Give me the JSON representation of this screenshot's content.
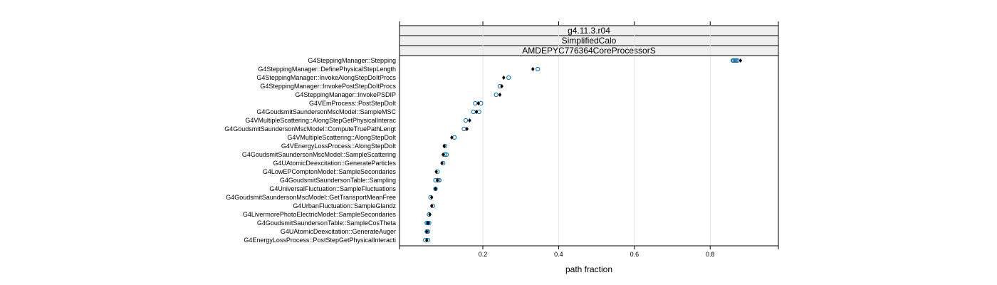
{
  "chart_data": {
    "type": "scatter",
    "strips": [
      "g4.11.3.r04",
      "SimplifiedCalo",
      "AMDEPYC776364CoreProcessorS"
    ],
    "xlabel": "path fraction",
    "xticks": [
      0.2,
      0.4,
      0.6,
      0.8
    ],
    "xlim": [
      -0.02,
      0.98
    ],
    "grid": true,
    "categories": [
      "G4SteppingManager::Stepping",
      "G4SteppingManager::DefinePhysicalStepLength",
      "G4SteppingManager::InvokeAlongStepDoItProcs",
      "G4SteppingManager::InvokePostStepDoItProcs",
      "G4SteppingManager::InvokePSDIP",
      "G4VEmProcess::PostStepDoIt",
      "G4GoudsmitSaundersonMscModel::SampleMSC",
      "G4VMultipleScattering::AlongStepGetPhysicalInterac",
      "G4GoudsmitSaundersonMscModel::ComputeTruePathLengt",
      "G4VMultipleScattering::AlongStepDoIt",
      "G4VEnergyLossProcess::AlongStepDoIt",
      "G4GoudsmitSaundersonMscModel::SampleScattering",
      "G4UAtomicDeexcitation::GenerateParticles",
      "G4LowEPComptonModel::SampleSecondaries",
      "G4GoudsmitSaundersonTable::Sampling",
      "G4UniversalFluctuation::SampleFluctuations",
      "G4GoudsmitSaundersonMscModel::GetTransportMeanFree",
      "G4UrbanFluctuation::SampleGlandz",
      "G4LivermorePhotoElectricModel::SampleSecondaries",
      "G4GoudsmitSaundersonTable::SampleCosTheta",
      "G4UAtomicDeexcitation::GenerateAuger",
      "G4EnergyLossProcess::PostStepGetPhysicalInteracti"
    ],
    "series": [
      {
        "name": "",
        "marker": "open-circle",
        "color": "#0072b2",
        "values": [
          [
            0.86,
            0.862,
            0.865,
            0.868,
            0.872
          ],
          [
            0.345
          ],
          [
            0.268
          ],
          [
            0.245
          ],
          [
            0.235
          ],
          [
            0.18,
            0.195
          ],
          [
            0.175,
            0.19
          ],
          [
            0.155
          ],
          [
            0.15
          ],
          [
            0.125
          ],
          [
            0.1
          ],
          [
            0.1,
            0.104
          ],
          [
            0.095
          ],
          [
            0.08
          ],
          [
            0.075,
            0.082,
            0.085
          ],
          [
            0.075
          ],
          [
            0.062
          ],
          [
            0.068
          ],
          [
            0.058
          ],
          [
            0.052,
            0.055,
            0.058
          ],
          [
            0.052,
            0.055
          ],
          [
            0.048,
            0.055
          ]
        ]
      },
      {
        "name": "",
        "marker": "filled-diamond",
        "color": "#000000",
        "values": [
          0.88,
          0.332,
          0.255,
          0.25,
          0.245,
          0.188,
          0.183,
          0.165,
          0.158,
          0.118,
          0.098,
          0.095,
          0.092,
          0.077,
          0.08,
          0.075,
          0.065,
          0.065,
          0.06,
          0.055,
          0.052,
          0.052
        ]
      }
    ]
  }
}
